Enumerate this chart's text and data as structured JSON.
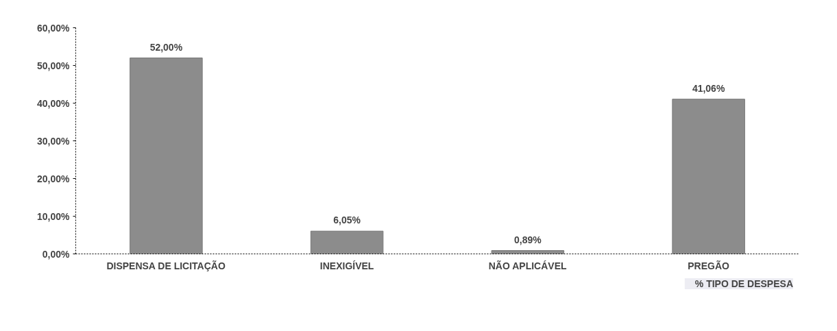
{
  "chart_data": {
    "type": "bar",
    "categories": [
      "DISPENSA DE LICITAÇÃO",
      "INEXIGÍVEL",
      "NÃO APLICÁVEL",
      "PREGÃO"
    ],
    "series": [
      {
        "name": "% TIPO DE DESPESA",
        "color": "#8c8c8c",
        "values": [
          52.0,
          6.05,
          0.89,
          41.06
        ],
        "value_labels": [
          "52,00%",
          "6,05%",
          "0,89%",
          "41,06%"
        ]
      }
    ],
    "ylim": [
      0,
      60
    ],
    "yticks": [
      {
        "value": 0,
        "label": "0,00%"
      },
      {
        "value": 10,
        "label": "10,00%"
      },
      {
        "value": 20,
        "label": "20,00%"
      },
      {
        "value": 30,
        "label": "30,00%"
      },
      {
        "value": 40,
        "label": "40,00%"
      },
      {
        "value": 50,
        "label": "50,00%"
      },
      {
        "value": 60,
        "label": "60,00%"
      }
    ],
    "grid": false,
    "legend": "bottom right"
  }
}
